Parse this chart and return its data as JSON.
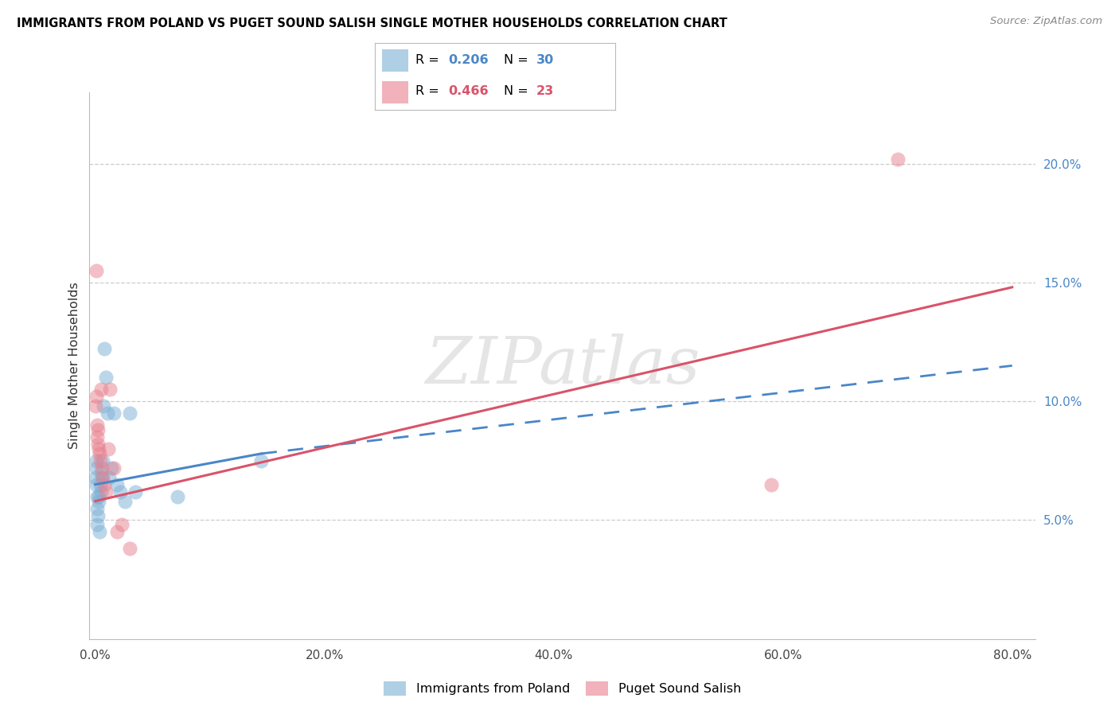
{
  "title": "IMMIGRANTS FROM POLAND VS PUGET SOUND SALISH SINGLE MOTHER HOUSEHOLDS CORRELATION CHART",
  "source": "Source: ZipAtlas.com",
  "ylabel": "Single Mother Households",
  "x_tick_labels": [
    "0.0%",
    "20.0%",
    "40.0%",
    "60.0%",
    "80.0%"
  ],
  "x_tick_vals": [
    0.0,
    20.0,
    40.0,
    60.0,
    80.0
  ],
  "y_tick_labels_right": [
    "5.0%",
    "10.0%",
    "15.0%",
    "20.0%"
  ],
  "y_tick_vals": [
    5.0,
    10.0,
    15.0,
    20.0
  ],
  "xlim": [
    -0.5,
    82.0
  ],
  "ylim": [
    0.0,
    23.0
  ],
  "legend_color1": "#7bafd4",
  "legend_color2": "#e8808e",
  "trend1_color": "#4a86c8",
  "trend2_color": "#d9536a",
  "r1": "0.206",
  "n1": "30",
  "r2": "0.466",
  "n2": "23",
  "watermark": "ZIPatlas",
  "poland_x": [
    0.05,
    0.07,
    0.09,
    0.11,
    0.13,
    0.15,
    0.18,
    0.22,
    0.27,
    0.32,
    0.38,
    0.42,
    0.48,
    0.52,
    0.58,
    0.65,
    0.72,
    0.82,
    0.92,
    1.05,
    1.2,
    1.4,
    1.6,
    1.9,
    2.2,
    2.6,
    3.0,
    3.5,
    7.2,
    14.5
  ],
  "poland_y": [
    6.8,
    7.2,
    6.5,
    7.5,
    6.0,
    5.5,
    4.8,
    5.2,
    6.0,
    5.8,
    4.5,
    6.5,
    6.2,
    7.0,
    6.8,
    7.5,
    9.8,
    12.2,
    11.0,
    9.5,
    6.8,
    7.2,
    9.5,
    6.5,
    6.2,
    5.8,
    9.5,
    6.2,
    6.0,
    7.5
  ],
  "salish_x": [
    0.05,
    0.08,
    0.1,
    0.13,
    0.16,
    0.2,
    0.25,
    0.3,
    0.36,
    0.42,
    0.5,
    0.58,
    0.68,
    0.8,
    0.95,
    1.1,
    1.3,
    1.6,
    1.9,
    2.3,
    3.0,
    59.0,
    70.0
  ],
  "salish_y": [
    9.8,
    10.2,
    15.5,
    9.0,
    8.5,
    8.8,
    8.2,
    8.0,
    7.8,
    7.5,
    10.5,
    7.2,
    6.8,
    6.5,
    6.2,
    8.0,
    10.5,
    7.2,
    4.5,
    4.8,
    3.8,
    6.5,
    20.2
  ],
  "trend1_x0": 0.0,
  "trend1_y0": 6.5,
  "trend1_x1": 14.5,
  "trend1_y1": 7.8,
  "trend1_dash_x1": 80.0,
  "trend1_dash_y1": 11.5,
  "trend2_x0": 0.0,
  "trend2_y0": 5.8,
  "trend2_x1": 80.0,
  "trend2_y1": 14.8
}
